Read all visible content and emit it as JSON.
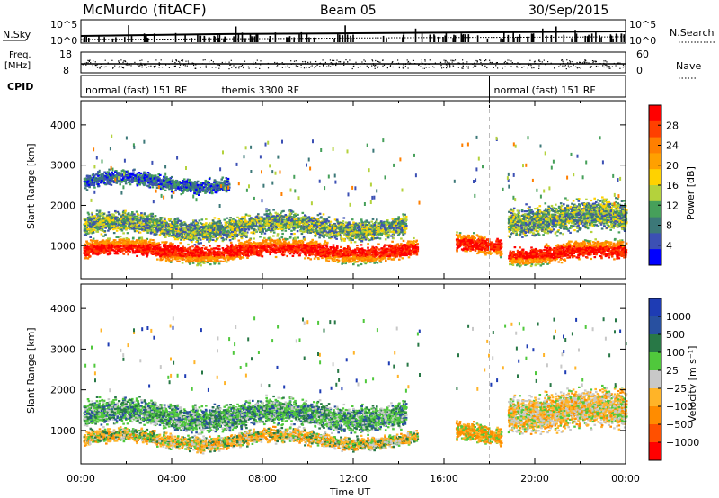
{
  "header": {
    "station": "McMurdo (fitACF)",
    "beam": "Beam 05",
    "date": "30/Sep/2015"
  },
  "status_panels": {
    "nsky_label": "N.Sky",
    "nsky_ticks": [
      "10^5",
      "10^0"
    ],
    "nsearch_label": "N.Search",
    "nsearch_ticks": [
      "10^5",
      "10^0"
    ],
    "freq_label_1": "Freq.",
    "freq_label_2": "[MHz]",
    "freq_ticks": [
      "18",
      "8"
    ],
    "nave_label": "Nave",
    "nave_ticks": [
      "60",
      "0"
    ],
    "cpid_label": "CPID",
    "modes": [
      {
        "label": "normal (fast) 151 RF",
        "start_hour": 0,
        "end_hour": 6
      },
      {
        "label": "themis 3300 RF",
        "start_hour": 6,
        "end_hour": 18
      },
      {
        "label": "normal (fast) 151 RF",
        "start_hour": 18,
        "end_hour": 24
      }
    ]
  },
  "chart_data": [
    {
      "type": "heatmap",
      "name": "power-panel",
      "ylabel": "Slant Range [km]",
      "xlabel": "",
      "x_ticks": [
        "00:00",
        "04:00",
        "08:00",
        "12:00",
        "16:00",
        "20:00",
        "00:00"
      ],
      "y_ticks": [
        1000,
        2000,
        3000,
        4000
      ],
      "xlim_hours": [
        0,
        24
      ],
      "ylim_km": [
        180,
        4600
      ],
      "colorbar_label": "Power [dB]",
      "colorbar_ticks": [
        "28",
        "24",
        "20",
        "16",
        "12",
        "8",
        "4"
      ],
      "colorbar_colors": [
        "#ff0000",
        "#ff4000",
        "#ff7f00",
        "#ffa000",
        "#ffd200",
        "#b4d23c",
        "#46a05a",
        "#3c7878",
        "#3c50b4",
        "#0000ff"
      ],
      "bands": [
        {
          "start_hour": 0.1,
          "end_hour": 14.8,
          "center_km": 900,
          "width_km": 500,
          "level": "high"
        },
        {
          "start_hour": 0.1,
          "end_hour": 14.3,
          "center_km": 1500,
          "width_km": 600,
          "level": "mid"
        },
        {
          "start_hour": 0.1,
          "end_hour": 6.5,
          "center_km": 2600,
          "width_km": 400,
          "level": "low"
        },
        {
          "start_hour": 16.5,
          "end_hour": 18.5,
          "center_km": 1050,
          "width_km": 500,
          "level": "high"
        },
        {
          "start_hour": 18.8,
          "end_hour": 24,
          "center_km": 850,
          "width_km": 500,
          "level": "high"
        },
        {
          "start_hour": 18.8,
          "end_hour": 24,
          "center_km": 1700,
          "width_km": 800,
          "level": "mid"
        }
      ]
    },
    {
      "type": "heatmap",
      "name": "velocity-panel",
      "ylabel": "Slant Range [km]",
      "xlabel": "Time UT",
      "x_ticks": [
        "00:00",
        "04:00",
        "08:00",
        "12:00",
        "16:00",
        "20:00",
        "00:00"
      ],
      "y_ticks": [
        1000,
        2000,
        3000,
        4000
      ],
      "xlim_hours": [
        0,
        24
      ],
      "ylim_km": [
        180,
        4600
      ],
      "colorbar_label": "Velocity [m s⁻¹]",
      "colorbar_ticks": [
        "1000",
        "500",
        "100",
        "25",
        "−25",
        "−100",
        "−500",
        "−1000"
      ],
      "colorbar_colors": [
        "#1e3cb4",
        "#2850a0",
        "#287846",
        "#50c83c",
        "#c8c8c8",
        "#ffb428",
        "#ff8c00",
        "#ff5000",
        "#ff0000"
      ],
      "bands": [
        {
          "start_hour": 0.1,
          "end_hour": 14.8,
          "center_km": 800,
          "width_km": 400,
          "level": "orange-green"
        },
        {
          "start_hour": 0.1,
          "end_hour": 14.3,
          "center_km": 1400,
          "width_km": 700,
          "level": "green-grey"
        },
        {
          "start_hour": 16.5,
          "end_hour": 18.5,
          "center_km": 950,
          "width_km": 500,
          "level": "orange"
        },
        {
          "start_hour": 18.8,
          "end_hour": 24,
          "center_km": 1500,
          "width_km": 1000,
          "level": "orange-grey"
        }
      ]
    }
  ]
}
